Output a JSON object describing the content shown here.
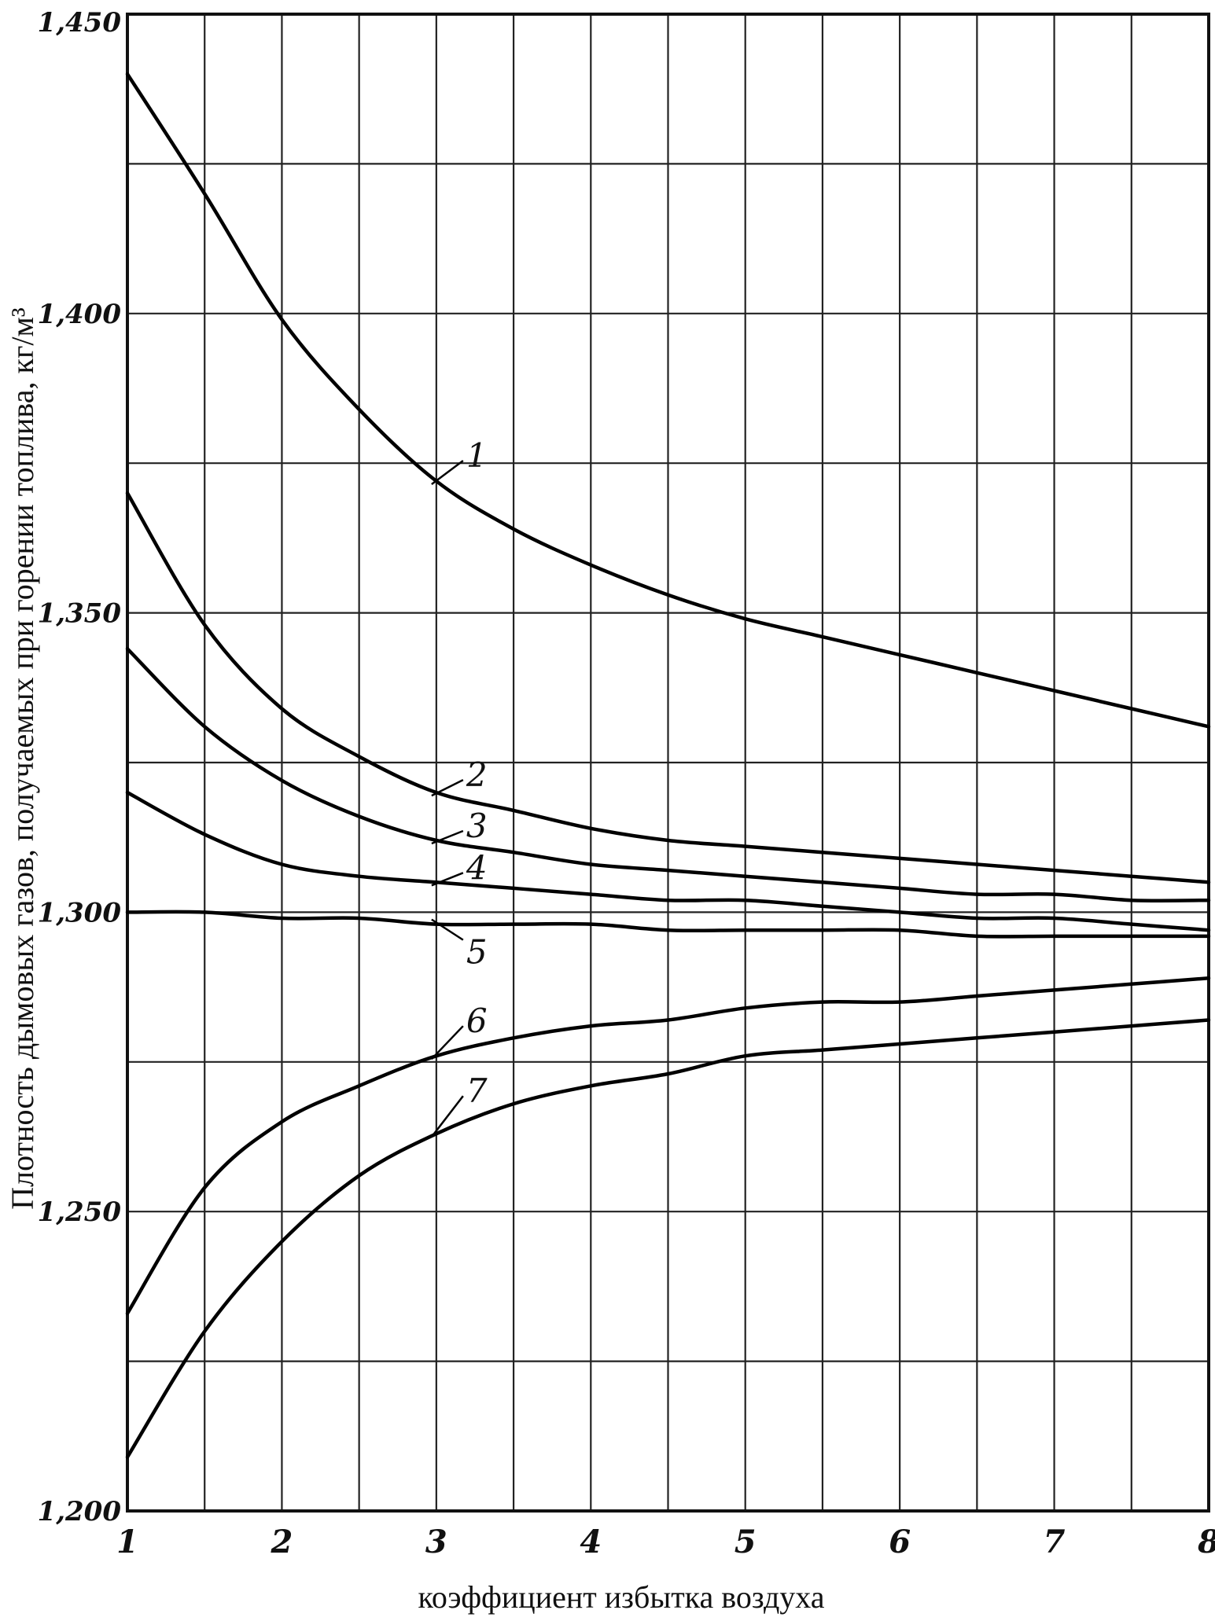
{
  "chart_data": {
    "type": "line",
    "xlabel": "коэффициент избытка воздуха",
    "ylabel": "Плотность дымовых газов, получаемых при горении топлива, кг/м³",
    "xlim": [
      1,
      8
    ],
    "ylim": [
      1.2,
      1.45
    ],
    "x_ticks": [
      "1",
      "2",
      "3",
      "4",
      "5",
      "6",
      "7",
      "8"
    ],
    "y_ticks": [
      "1,200",
      "1,250",
      "1,300",
      "1,350",
      "1,400",
      "1,450"
    ],
    "grid": true,
    "x": [
      1,
      1.5,
      2,
      2.5,
      3,
      3.5,
      4,
      4.5,
      5,
      5.5,
      6,
      6.5,
      7,
      7.5,
      8
    ],
    "series": [
      {
        "name": "1",
        "values": [
          1.44,
          1.42,
          1.399,
          1.384,
          1.372,
          1.364,
          1.358,
          1.353,
          1.349,
          1.346,
          1.343,
          1.34,
          1.337,
          1.334,
          1.331
        ]
      },
      {
        "name": "2",
        "values": [
          1.37,
          1.348,
          1.334,
          1.326,
          1.32,
          1.317,
          1.314,
          1.312,
          1.311,
          1.31,
          1.309,
          1.308,
          1.307,
          1.306,
          1.305
        ]
      },
      {
        "name": "3",
        "values": [
          1.344,
          1.331,
          1.322,
          1.316,
          1.312,
          1.31,
          1.308,
          1.307,
          1.306,
          1.305,
          1.304,
          1.303,
          1.303,
          1.302,
          1.302
        ]
      },
      {
        "name": "4",
        "values": [
          1.32,
          1.313,
          1.308,
          1.306,
          1.305,
          1.304,
          1.303,
          1.302,
          1.302,
          1.301,
          1.3,
          1.299,
          1.299,
          1.298,
          1.297
        ]
      },
      {
        "name": "5",
        "values": [
          1.3,
          1.3,
          1.299,
          1.299,
          1.298,
          1.298,
          1.298,
          1.297,
          1.297,
          1.297,
          1.297,
          1.296,
          1.296,
          1.296,
          1.296
        ]
      },
      {
        "name": "6",
        "values": [
          1.233,
          1.254,
          1.265,
          1.271,
          1.276,
          1.279,
          1.281,
          1.282,
          1.284,
          1.285,
          1.285,
          1.286,
          1.287,
          1.288,
          1.289
        ]
      },
      {
        "name": "7",
        "values": [
          1.209,
          1.23,
          1.245,
          1.256,
          1.263,
          1.268,
          1.271,
          1.273,
          1.276,
          1.277,
          1.278,
          1.279,
          1.28,
          1.281,
          1.282
        ]
      }
    ]
  }
}
